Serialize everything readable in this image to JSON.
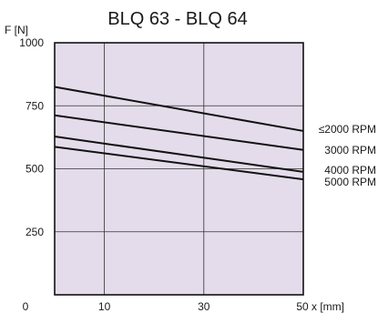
{
  "chart_data": {
    "type": "line",
    "title": "BLQ 63 - BLQ 64",
    "ylabel": "F [N]",
    "xlabel": "x [mm]",
    "xlim": [
      0,
      50
    ],
    "ylim": [
      0,
      1000
    ],
    "x_ticks": [
      10,
      30,
      50
    ],
    "y_ticks": [
      250,
      500,
      750,
      1000
    ],
    "origin_label": "0",
    "grid": true,
    "plot_background": "#e4dcea",
    "line_color": "#111111",
    "legend_placement": "right",
    "series": [
      {
        "name": "≤2000  RPM",
        "x": [
          0,
          50
        ],
        "y": [
          825,
          650
        ]
      },
      {
        "name": "3000  RPM",
        "x": [
          0,
          50
        ],
        "y": [
          712,
          575
        ]
      },
      {
        "name": "4000  RPM",
        "x": [
          0,
          50
        ],
        "y": [
          628,
          488
        ]
      },
      {
        "name": "5000  RPM",
        "x": [
          0,
          50
        ],
        "y": [
          587,
          458
        ]
      }
    ]
  }
}
